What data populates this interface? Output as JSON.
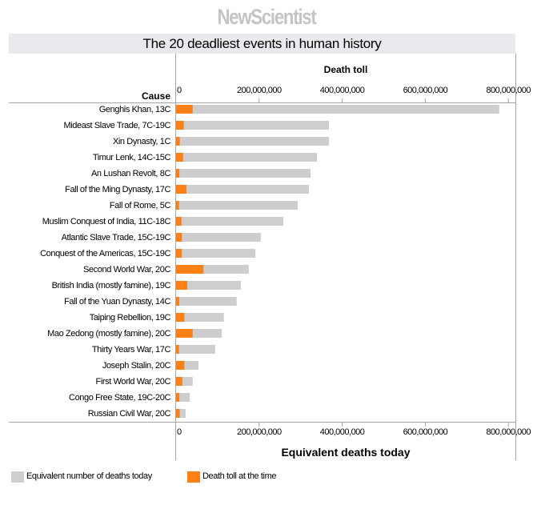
{
  "logo": "NewScientist",
  "colors": {
    "today": "#cecece",
    "at_time": "#ff8013",
    "axis": "#a6a6a6"
  },
  "chart_data": {
    "type": "bar",
    "orientation": "horizontal",
    "title": "The 20 deadliest events in human history",
    "top_axis_label": "Death toll",
    "xlabel": "Equivalent deaths today",
    "ylabel": "Cause",
    "xlim": [
      0,
      850000000
    ],
    "xticks": [
      0,
      200000000,
      400000000,
      600000000,
      800000000
    ],
    "xtick_labels": [
      "0",
      "200,000,000",
      "400,000,000",
      "600,000,000",
      "800,000,000"
    ],
    "legend_position": "bottom-left",
    "categories": [
      "Genghis Khan, 13C",
      "Mideast Slave Trade, 7C-19C",
      "Xin Dynasty, 1C",
      "Timur Lenk, 14C-15C",
      "An Lushan Revolt, 8C",
      "Fall of the Ming Dynasty, 17C",
      "Fall of Rome, 5C",
      "Muslim Conquest of India, 11C-18C",
      "Atlantic Slave Trade, 15C-19C",
      "Conquest of the Americas, 15C-19C",
      "Second World War, 20C",
      "British India (mostly famine), 19C",
      "Fall of the Yuan Dynasty, 14C",
      "Taiping Rebellion, 19C",
      "Mao Zedong (mostly famine), 20C",
      "Thirty Years War, 17C",
      "Joseph Stalin, 20C",
      "First World War, 20C",
      "Congo Free State, 19C-20C",
      "Russian Civil War, 20C"
    ],
    "series": [
      {
        "name": "Equivalent number of deaths today",
        "values": [
          778000000,
          368000000,
          368000000,
          339000000,
          324000000,
          320000000,
          293000000,
          258000000,
          204000000,
          191000000,
          175000000,
          156000000,
          146000000,
          115000000,
          110000000,
          94000000,
          54000000,
          40000000,
          33000000,
          23000000
        ]
      },
      {
        "name": "Death toll at the time",
        "values": [
          40000000,
          18500000,
          9000000,
          17000000,
          8000000,
          25000000,
          7000000,
          13000000,
          14000000,
          14000000,
          66000000,
          27000000,
          7500000,
          20000000,
          40000000,
          7000000,
          20000000,
          15000000,
          8000000,
          9000000
        ]
      }
    ]
  }
}
